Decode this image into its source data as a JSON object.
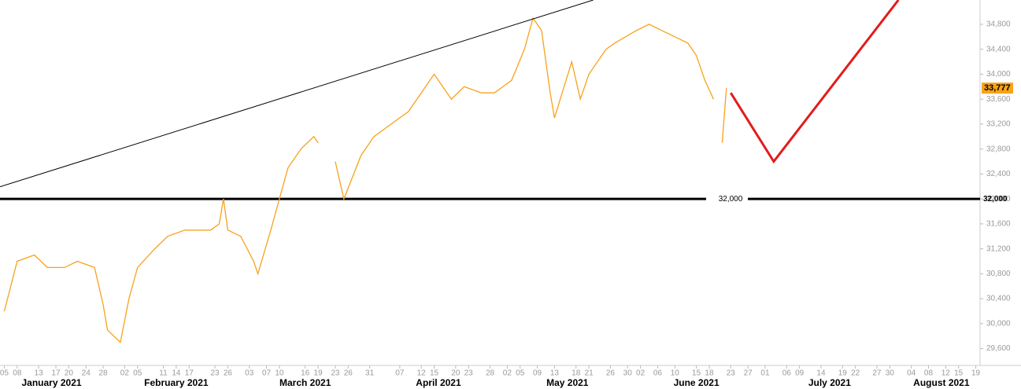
{
  "chart_data": {
    "type": "line",
    "xlim": [
      "2021-01-04",
      "2021-08-20"
    ],
    "ylim": [
      29330,
      35190
    ],
    "yticks": [
      {
        "value": 29600,
        "label": "29,600"
      },
      {
        "value": 30000,
        "label": "30,000"
      },
      {
        "value": 30400,
        "label": "30,400"
      },
      {
        "value": 30800,
        "label": "30,800"
      },
      {
        "value": 31200,
        "label": "31,200"
      },
      {
        "value": 31600,
        "label": "31,600"
      },
      {
        "value": 32000,
        "label": "32,000"
      },
      {
        "value": 32400,
        "label": "32,400"
      },
      {
        "value": 32800,
        "label": "32,800"
      },
      {
        "value": 33200,
        "label": "33,200"
      },
      {
        "value": 33600,
        "label": "33,600"
      },
      {
        "value": 34000,
        "label": "34,000"
      },
      {
        "value": 34400,
        "label": "34,400"
      },
      {
        "value": 34800,
        "label": "34,800"
      }
    ],
    "xticks": [
      {
        "value": "2021-01-05",
        "label": "05"
      },
      {
        "value": "2021-01-08",
        "label": "08"
      },
      {
        "value": "2021-01-13",
        "label": "13"
      },
      {
        "value": "2021-01-17",
        "label": "17"
      },
      {
        "value": "2021-01-20",
        "label": "20"
      },
      {
        "value": "2021-01-24",
        "label": "24"
      },
      {
        "value": "2021-01-28",
        "label": "28"
      },
      {
        "value": "2021-02-02",
        "label": "02"
      },
      {
        "value": "2021-02-05",
        "label": "05"
      },
      {
        "value": "2021-02-11",
        "label": "11"
      },
      {
        "value": "2021-02-14",
        "label": "14"
      },
      {
        "value": "2021-02-17",
        "label": "17"
      },
      {
        "value": "2021-02-23",
        "label": "23"
      },
      {
        "value": "2021-02-26",
        "label": "26"
      },
      {
        "value": "2021-03-03",
        "label": "03"
      },
      {
        "value": "2021-03-07",
        "label": "07"
      },
      {
        "value": "2021-03-10",
        "label": "10"
      },
      {
        "value": "2021-03-16",
        "label": "16"
      },
      {
        "value": "2021-03-19",
        "label": "19"
      },
      {
        "value": "2021-03-23",
        "label": "23"
      },
      {
        "value": "2021-03-26",
        "label": "26"
      },
      {
        "value": "2021-03-31",
        "label": "31"
      },
      {
        "value": "2021-04-07",
        "label": "07"
      },
      {
        "value": "2021-04-12",
        "label": "12"
      },
      {
        "value": "2021-04-15",
        "label": "15"
      },
      {
        "value": "2021-04-20",
        "label": "20"
      },
      {
        "value": "2021-04-23",
        "label": "23"
      },
      {
        "value": "2021-04-28",
        "label": "28"
      },
      {
        "value": "2021-05-02",
        "label": "02"
      },
      {
        "value": "2021-05-05",
        "label": "05"
      },
      {
        "value": "2021-05-09",
        "label": "09"
      },
      {
        "value": "2021-05-13",
        "label": "13"
      },
      {
        "value": "2021-05-18",
        "label": "18"
      },
      {
        "value": "2021-05-21",
        "label": "21"
      },
      {
        "value": "2021-05-26",
        "label": "26"
      },
      {
        "value": "2021-05-30",
        "label": "30"
      },
      {
        "value": "2021-06-02",
        "label": "02"
      },
      {
        "value": "2021-06-06",
        "label": "06"
      },
      {
        "value": "2021-06-10",
        "label": "10"
      },
      {
        "value": "2021-06-15",
        "label": "15"
      },
      {
        "value": "2021-06-18",
        "label": "18"
      },
      {
        "value": "2021-06-23",
        "label": "23"
      },
      {
        "value": "2021-06-27",
        "label": "27"
      },
      {
        "value": "2021-07-01",
        "label": "01"
      },
      {
        "value": "2021-07-06",
        "label": "06"
      },
      {
        "value": "2021-07-09",
        "label": "09"
      },
      {
        "value": "2021-07-14",
        "label": "14"
      },
      {
        "value": "2021-07-19",
        "label": "19"
      },
      {
        "value": "2021-07-22",
        "label": "22"
      },
      {
        "value": "2021-07-27",
        "label": "27"
      },
      {
        "value": "2021-07-30",
        "label": "30"
      },
      {
        "value": "2021-08-04",
        "label": "04"
      },
      {
        "value": "2021-08-08",
        "label": "08"
      },
      {
        "value": "2021-08-12",
        "label": "12"
      },
      {
        "value": "2021-08-15",
        "label": "15"
      },
      {
        "value": "2021-08-19",
        "label": "19"
      }
    ],
    "month_labels": [
      {
        "value": "2021-01-16",
        "label": "January 2021"
      },
      {
        "value": "2021-02-14",
        "label": "February 2021"
      },
      {
        "value": "2021-03-16",
        "label": "March 2021"
      },
      {
        "value": "2021-04-16",
        "label": "April 2021"
      },
      {
        "value": "2021-05-16",
        "label": "May 2021"
      },
      {
        "value": "2021-06-15",
        "label": "June 2021"
      },
      {
        "value": "2021-07-16",
        "label": "July 2021"
      },
      {
        "value": "2021-08-11",
        "label": "August 2021"
      }
    ],
    "series": [
      {
        "color": "#f7a21b",
        "x": [
          "2021-01-05",
          "2021-01-08",
          "2021-01-12",
          "2021-01-15",
          "2021-01-19",
          "2021-01-22",
          "2021-01-26",
          "2021-01-28",
          "2021-01-29",
          "2021-02-01",
          "2021-02-03",
          "2021-02-05",
          "2021-02-09",
          "2021-02-12",
          "2021-02-16",
          "2021-02-19",
          "2021-02-22",
          "2021-02-24",
          "2021-02-25",
          "2021-02-26",
          "2021-03-01",
          "2021-03-04",
          "2021-03-05",
          "2021-03-08",
          "2021-03-10",
          "2021-03-12",
          "2021-03-15",
          "2021-03-18",
          "2021-03-19",
          "2021-03-21",
          "2021-03-23",
          "2021-03-25",
          "2021-03-29",
          "2021-04-01",
          "2021-04-05",
          "2021-04-09",
          "2021-04-13",
          "2021-04-15",
          "2021-04-19",
          "2021-04-22",
          "2021-04-26",
          "2021-04-29",
          "2021-05-03",
          "2021-05-06",
          "2021-05-08",
          "2021-05-10",
          "2021-05-12",
          "2021-05-13",
          "2021-05-17",
          "2021-05-19",
          "2021-05-21",
          "2021-05-25",
          "2021-05-27",
          "2021-06-01",
          "2021-06-04",
          "2021-06-07",
          "2021-06-10",
          "2021-06-13",
          "2021-06-15",
          "2021-06-17",
          "2021-06-19",
          "2021-06-20",
          "2021-06-21",
          "2021-06-22"
        ],
        "values": [
          30200,
          31000,
          31100,
          30900,
          30900,
          31000,
          30900,
          30300,
          29900,
          29700,
          30400,
          30900,
          31200,
          31400,
          31500,
          31500,
          31500,
          31600,
          32000,
          31500,
          31400,
          31000,
          30800,
          31500,
          32000,
          32500,
          32800,
          33000,
          32900,
          null,
          32600,
          32000,
          32700,
          33000,
          33200,
          33400,
          33800,
          34000,
          33600,
          33800,
          33700,
          33700,
          33900,
          34400,
          34900,
          34700,
          33700,
          33300,
          34200,
          33600,
          34000,
          34400,
          34500,
          34700,
          34800,
          34700,
          34600,
          34500,
          34300,
          33900,
          33600,
          null,
          32900,
          33777
        ]
      },
      {
        "color": "#e31b1b",
        "width": 3,
        "x": [
          "2021-06-23",
          "2021-07-03",
          "2021-08-01"
        ],
        "values": [
          33700,
          32600,
          35190
        ]
      },
      {
        "color": "#000000",
        "width": 1,
        "x": [
          "2021-01-04",
          "2021-05-22"
        ],
        "values": [
          32194,
          35190
        ]
      }
    ],
    "level": {
      "value": 32000,
      "label": "32,000"
    },
    "last_price": {
      "value": 33777,
      "label": "33,777"
    }
  }
}
